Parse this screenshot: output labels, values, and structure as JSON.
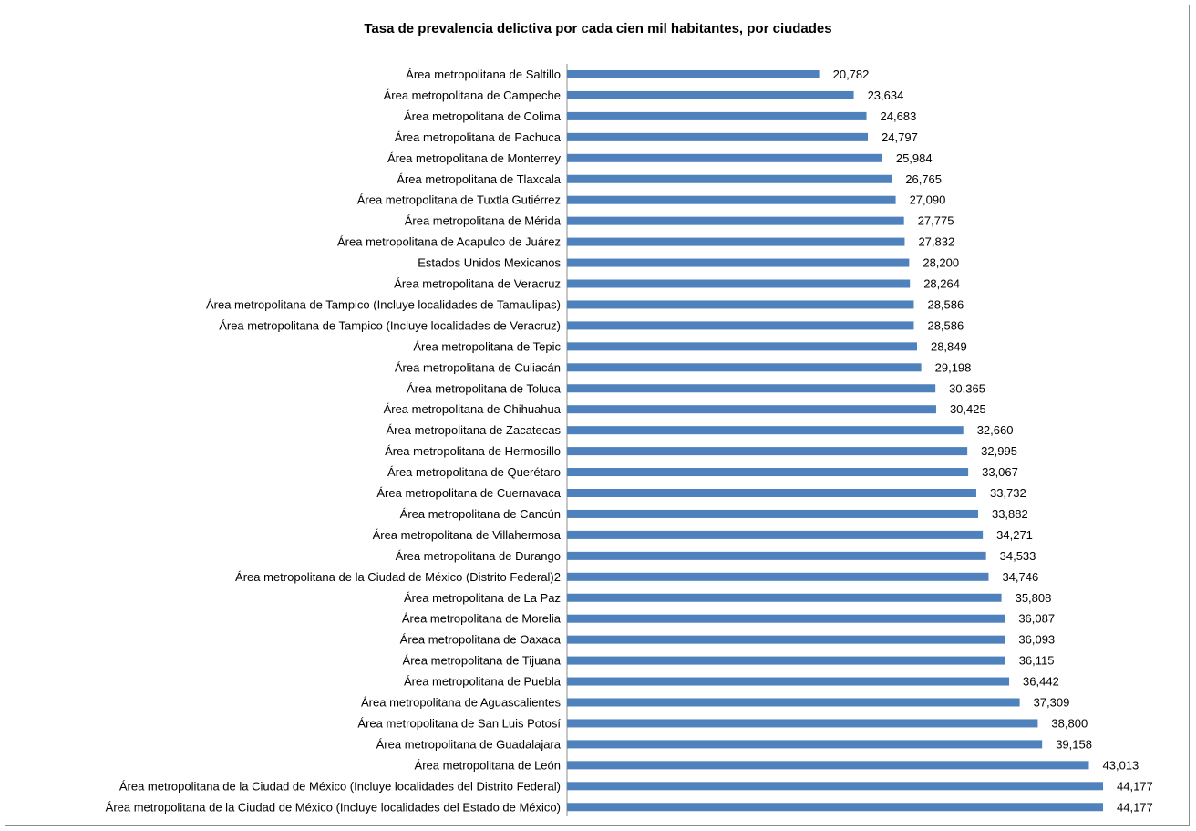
{
  "chart_data": {
    "type": "bar",
    "orientation": "horizontal",
    "title": "Tasa de prevalencia delictiva por cada cien mil habitantes, por ciudades",
    "bar_color": "#4f81bd",
    "categories": [
      "Área metropolitana de Saltillo",
      "Área metropolitana de Campeche",
      "Área metropolitana de Colima",
      "Área metropolitana de Pachuca",
      "Área metropolitana de Monterrey",
      "Área metropolitana de Tlaxcala",
      "Área metropolitana de Tuxtla Gutiérrez",
      "Área metropolitana de Mérida",
      "Área metropolitana de Acapulco de Juárez",
      "Estados Unidos Mexicanos",
      "Área metropolitana de Veracruz",
      "Área metropolitana de Tampico (Incluye localidades de Tamaulipas)",
      "Área metropolitana de Tampico (Incluye localidades de Veracruz)",
      "Área metropolitana de Tepic",
      "Área metropolitana de Culiacán",
      "Área metropolitana de Toluca",
      "Área metropolitana de Chihuahua",
      "Área metropolitana de Zacatecas",
      "Área metropolitana de Hermosillo",
      "Área metropolitana de Querétaro",
      "Área metropolitana de Cuernavaca",
      "Área metropolitana de Cancún",
      "Área metropolitana de Villahermosa",
      "Área metropolitana de Durango",
      "Área metropolitana de la Ciudad de México (Distrito Federal)2",
      "Área metropolitana de La Paz",
      "Área metropolitana de Morelia",
      "Área metropolitana de Oaxaca",
      "Área metropolitana de Tijuana",
      "Área metropolitana de Puebla",
      "Área metropolitana de Aguascalientes",
      "Área metropolitana de San Luis Potosí",
      "Área metropolitana de Guadalajara",
      "Área metropolitana de León",
      "Área metropolitana de la Ciudad de México (Incluye localidades del Distrito Federal)",
      "Área metropolitana de la Ciudad de México (Incluye localidades del Estado de México)"
    ],
    "values": [
      20782,
      23634,
      24683,
      24797,
      25984,
      26765,
      27090,
      27775,
      27832,
      28200,
      28264,
      28586,
      28586,
      28849,
      29198,
      30365,
      30425,
      32660,
      32995,
      33067,
      33732,
      33882,
      34271,
      34533,
      34746,
      35808,
      36087,
      36093,
      36115,
      36442,
      37309,
      38800,
      39158,
      43013,
      44177,
      44177
    ],
    "value_labels": [
      "20,782",
      "23,634",
      "24,683",
      "24,797",
      "25,984",
      "26,765",
      "27,090",
      "27,775",
      "27,832",
      "28,200",
      "28,264",
      "28,586",
      "28,586",
      "28,849",
      "29,198",
      "30,365",
      "30,425",
      "32,660",
      "32,995",
      "33,067",
      "33,732",
      "33,882",
      "34,271",
      "34,533",
      "34,746",
      "35,808",
      "36,087",
      "36,093",
      "36,115",
      "36,442",
      "37,309",
      "38,800",
      "39,158",
      "43,013",
      "44,177",
      "44,177"
    ],
    "xlim": [
      0,
      44177
    ],
    "grid": false,
    "legend": "none"
  }
}
